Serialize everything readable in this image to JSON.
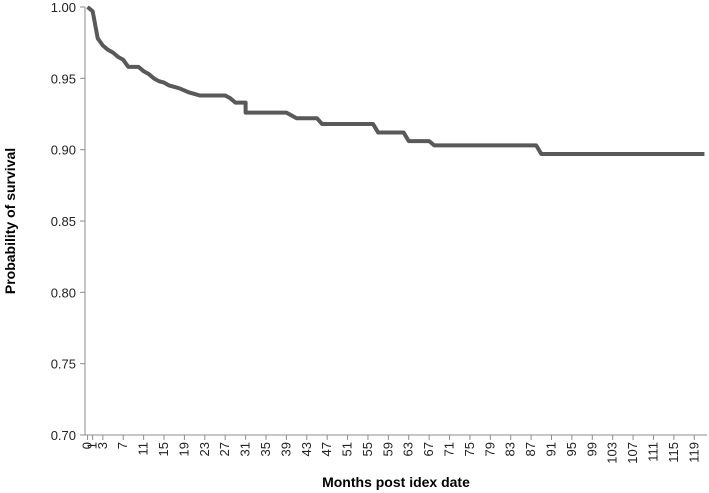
{
  "chart_data": {
    "type": "line",
    "x_label": "Months post idex date",
    "y_label": "Probability of survival",
    "xlim": [
      -0.5,
      121.5
    ],
    "xticks": [
      0,
      1,
      3,
      7,
      11,
      15,
      19,
      23,
      27,
      31,
      35,
      39,
      43,
      47,
      51,
      55,
      59,
      63,
      67,
      71,
      75,
      79,
      83,
      87,
      91,
      95,
      99,
      103,
      107,
      111,
      115,
      119
    ],
    "ylim": [
      0.7,
      1.0
    ],
    "yticks": [
      {
        "value": 0.7,
        "label": "0.70"
      },
      0.75,
      {
        "value": 0.8,
        "label": "0.80"
      },
      0.85,
      {
        "value": 0.9,
        "label": "0.90"
      },
      0.95,
      {
        "value": 1.0,
        "label": "1.00"
      }
    ],
    "grid": false,
    "series": [
      {
        "color": "#595959",
        "x": [
          0,
          1,
          2,
          3,
          4,
          5,
          6,
          7,
          8,
          10,
          11,
          12,
          13,
          14,
          15,
          16,
          18,
          20,
          22,
          27,
          28,
          29,
          31,
          31,
          39,
          41,
          45,
          46,
          56,
          57,
          62,
          63,
          67,
          68,
          88,
          89,
          121
        ],
        "values": [
          1.0,
          0.997,
          0.978,
          0.973,
          0.97,
          0.968,
          0.965,
          0.963,
          0.958,
          0.958,
          0.955,
          0.953,
          0.95,
          0.948,
          0.947,
          0.945,
          0.943,
          0.94,
          0.938,
          0.938,
          0.936,
          0.933,
          0.933,
          0.926,
          0.926,
          0.922,
          0.922,
          0.918,
          0.918,
          0.912,
          0.912,
          0.906,
          0.906,
          0.903,
          0.903,
          0.897,
          0.897
        ]
      }
    ]
  }
}
